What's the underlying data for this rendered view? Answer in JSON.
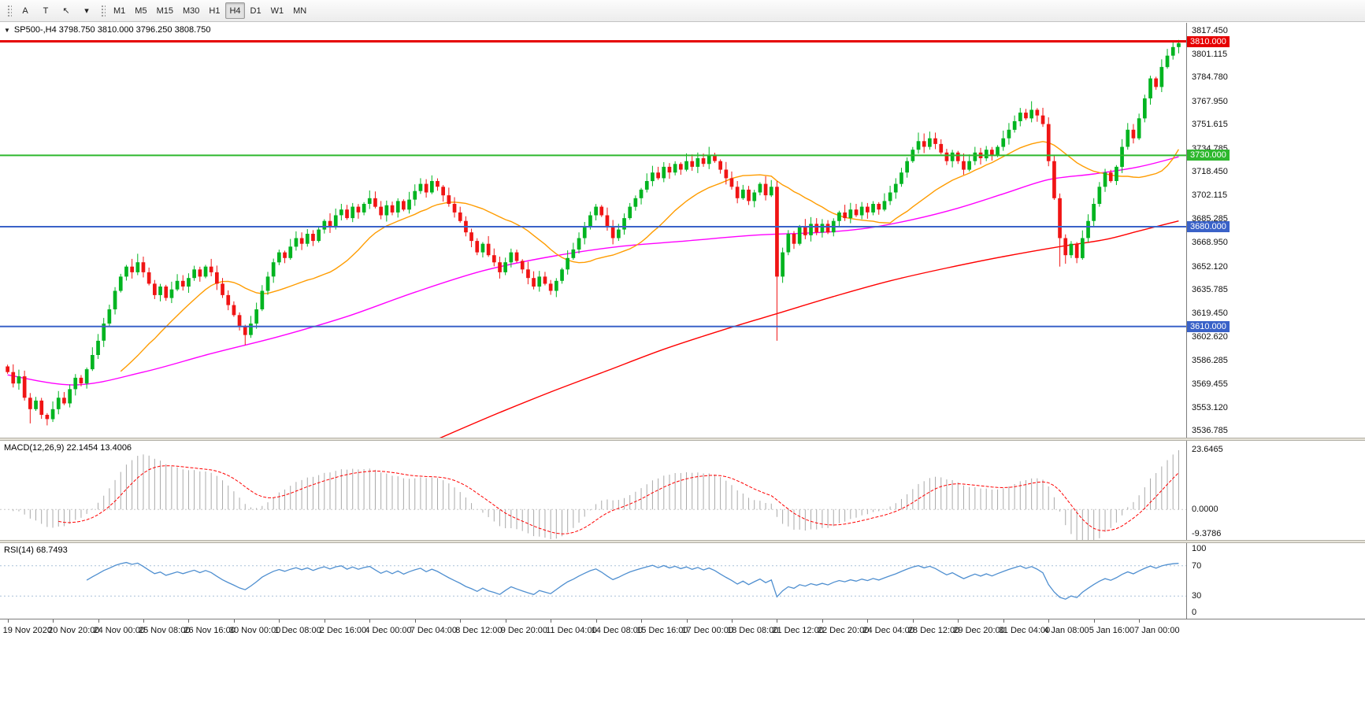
{
  "toolbar": {
    "tools": [
      {
        "name": "text-tool",
        "label": "A"
      },
      {
        "name": "text-label-tool",
        "label": "T"
      },
      {
        "name": "cursor-tool",
        "label": "↖"
      },
      {
        "name": "tools-dropdown",
        "label": "▾"
      }
    ],
    "timeframes": [
      "M1",
      "M5",
      "M15",
      "M30",
      "H1",
      "H4",
      "D1",
      "W1",
      "MN"
    ],
    "active_timeframe": "H4"
  },
  "icons": {
    "one_click": "▼"
  },
  "panels": {
    "main": {
      "title": "SP500-,H4 3798.750 3810.000 3796.250 3808.750"
    },
    "macd": {
      "title": "MACD(12,26,9) 22.1454 13.4006"
    },
    "rsi": {
      "title": "RSI(14) 68.7493"
    }
  },
  "colors": {
    "up": "#00b420",
    "down": "#f01414",
    "ma_fast": "#ff9c00",
    "ma_mid": "#ff00ff",
    "ma_slow": "#ff0000",
    "rsi": "#4f8fd0",
    "rsi_level": "#a9c0d8",
    "macd_hist": "#a9a9a9",
    "macd_signal": "#ff0000",
    "zero_line": "#c8c8c8"
  },
  "chart_data": {
    "type": "candlestick",
    "symbol": "SP500-",
    "timeframe": "H4",
    "ohlc_display": {
      "open": "3798.750",
      "high": "3810.000",
      "low": "3796.250",
      "close": "3808.750"
    },
    "open_first": 3582,
    "closes": [
      3578,
      3570,
      3575,
      3560,
      3552,
      3558,
      3548,
      3545,
      3552,
      3560,
      3556,
      3566,
      3574,
      3570,
      3580,
      3590,
      3600,
      3612,
      3622,
      3635,
      3645,
      3652,
      3648,
      3655,
      3648,
      3640,
      3632,
      3638,
      3630,
      3636,
      3642,
      3638,
      3644,
      3650,
      3645,
      3652,
      3648,
      3640,
      3632,
      3625,
      3618,
      3610,
      3604,
      3612,
      3622,
      3635,
      3645,
      3655,
      3662,
      3658,
      3666,
      3672,
      3668,
      3675,
      3670,
      3678,
      3684,
      3680,
      3688,
      3692,
      3686,
      3694,
      3690,
      3696,
      3700,
      3694,
      3688,
      3695,
      3690,
      3698,
      3692,
      3699,
      3705,
      3710,
      3704,
      3712,
      3708,
      3702,
      3696,
      3690,
      3684,
      3676,
      3670,
      3662,
      3668,
      3660,
      3655,
      3648,
      3655,
      3662,
      3656,
      3650,
      3644,
      3638,
      3645,
      3640,
      3635,
      3642,
      3650,
      3658,
      3664,
      3672,
      3680,
      3688,
      3694,
      3688,
      3680,
      3672,
      3678,
      3686,
      3694,
      3700,
      3706,
      3712,
      3718,
      3714,
      3722,
      3718,
      3724,
      3720,
      3726,
      3722,
      3728,
      3724,
      3730,
      3726,
      3720,
      3714,
      3708,
      3700,
      3706,
      3698,
      3704,
      3710,
      3702,
      3708,
      3645,
      3662,
      3675,
      3668,
      3680,
      3674,
      3682,
      3676,
      3682,
      3676,
      3684,
      3690,
      3686,
      3692,
      3688,
      3694,
      3690,
      3696,
      3692,
      3698,
      3704,
      3710,
      3718,
      3726,
      3734,
      3740,
      3736,
      3742,
      3738,
      3732,
      3726,
      3732,
      3726,
      3720,
      3726,
      3732,
      3728,
      3734,
      3730,
      3736,
      3742,
      3748,
      3754,
      3760,
      3756,
      3762,
      3758,
      3752,
      3726,
      3700,
      3672,
      3660,
      3668,
      3658,
      3672,
      3684,
      3696,
      3708,
      3718,
      3712,
      3722,
      3736,
      3748,
      3742,
      3756,
      3770,
      3784,
      3778,
      3792,
      3800,
      3806,
      3808.75
    ],
    "wick_overrides": {
      "4": {
        "low": 3542
      },
      "23": {
        "high": 3661
      },
      "42": {
        "low": 3597
      },
      "75": {
        "high": 3716
      },
      "124": {
        "high": 3736
      },
      "136": {
        "low": 3600
      },
      "161": {
        "high": 3746
      },
      "181": {
        "high": 3768
      },
      "186": {
        "low": 3652
      },
      "187": {
        "low": 3654
      },
      "207": {
        "high": 3811
      }
    },
    "price_axis": {
      "plot_max": 3823.0,
      "plot_min": 3532.0,
      "labels": [
        "3817.450",
        "3801.115",
        "3784.780",
        "3767.950",
        "3751.615",
        "3734.785",
        "3718.450",
        "3702.115",
        "3685.285",
        "3668.950",
        "3652.120",
        "3635.785",
        "3619.450",
        "3602.620",
        "3586.285",
        "3569.455",
        "3553.120",
        "3536.785"
      ]
    },
    "levels": [
      {
        "value": 3810.0,
        "label": "3810.000",
        "color": "#e60000",
        "width": 3
      },
      {
        "value": 3730.0,
        "label": "3730.000",
        "color": "#2eb82e",
        "width": 2
      },
      {
        "value": 3680.0,
        "label": "3680.000",
        "color": "#3a62c8",
        "width": 2
      },
      {
        "value": 3610.0,
        "label": "3610.000",
        "color": "#3a62c8",
        "width": 2
      }
    ],
    "ma": {
      "fast_period": 21,
      "mid_anchors": [
        [
          0,
          3576
        ],
        [
          12,
          3569
        ],
        [
          24,
          3578
        ],
        [
          36,
          3591
        ],
        [
          48,
          3603
        ],
        [
          60,
          3617
        ],
        [
          72,
          3634
        ],
        [
          84,
          3649
        ],
        [
          96,
          3659
        ],
        [
          108,
          3666
        ],
        [
          120,
          3670
        ],
        [
          132,
          3674
        ],
        [
          144,
          3676
        ],
        [
          152,
          3679
        ],
        [
          160,
          3685
        ],
        [
          168,
          3693
        ],
        [
          176,
          3703
        ],
        [
          184,
          3713
        ],
        [
          192,
          3717
        ],
        [
          200,
          3722
        ],
        [
          207,
          3729
        ]
      ],
      "slow_anchors": [
        [
          76,
          3531
        ],
        [
          86,
          3548
        ],
        [
          96,
          3564
        ],
        [
          106,
          3579
        ],
        [
          116,
          3594
        ],
        [
          126,
          3607
        ],
        [
          136,
          3619
        ],
        [
          146,
          3631
        ],
        [
          156,
          3642
        ],
        [
          166,
          3651
        ],
        [
          176,
          3659
        ],
        [
          186,
          3666
        ],
        [
          194,
          3671
        ],
        [
          200,
          3677
        ],
        [
          207,
          3684
        ]
      ]
    },
    "time_labels": [
      "19 Nov 2020",
      "20 Nov 20:00",
      "24 Nov 00:00",
      "25 Nov 08:00",
      "26 Nov 16:00",
      "30 Nov 00:00",
      "1 Dec 08:00",
      "2 Dec 16:00",
      "4 Dec 00:00",
      "7 Dec 04:00",
      "8 Dec 12:00",
      "9 Dec 20:00",
      "11 Dec 04:00",
      "14 Dec 08:00",
      "15 Dec 16:00",
      "17 Dec 00:00",
      "18 Dec 08:00",
      "21 Dec 12:00",
      "22 Dec 20:00",
      "24 Dec 04:00",
      "28 Dec 12:00",
      "29 Dec 20:00",
      "31 Dec 04:00",
      "4 Jan 08:00",
      "5 Jan 16:00",
      "7 Jan 00:00"
    ],
    "bars_per_label": 8,
    "macd": {
      "fast": 12,
      "slow": 26,
      "signal_period": 9,
      "current_main": 22.1454,
      "current_signal": 13.4006,
      "plot_max": 27.0,
      "plot_min": -12.0,
      "axis": [
        {
          "label": "23.6465",
          "value": 23.6465
        },
        {
          "label": "0.0000",
          "value": 0
        },
        {
          "label": "-9.3786",
          "value": -9.3786
        }
      ]
    },
    "rsi": {
      "period": 14,
      "current": 68.7493,
      "levels": [
        70,
        30
      ],
      "axis": [
        {
          "label": "100",
          "value": 100
        },
        {
          "label": "70",
          "value": 70
        },
        {
          "label": "30",
          "value": 30
        },
        {
          "label": "0",
          "value": 0
        }
      ]
    }
  }
}
